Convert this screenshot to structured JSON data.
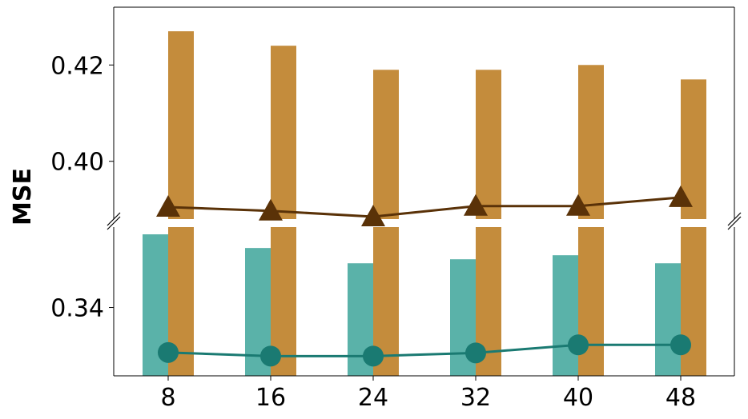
{
  "chart_data": {
    "type": "bar",
    "ylabel": "MSE",
    "categories": [
      "8",
      "16",
      "24",
      "32",
      "40",
      "48"
    ],
    "y_axis_broken": true,
    "upper_panel": {
      "ylim": [
        0.388,
        0.432
      ],
      "yticks": [
        "0.40",
        "0.42"
      ]
    },
    "lower_panel": {
      "ylim": [
        0.323,
        0.36
      ],
      "yticks": [
        "0.34"
      ]
    },
    "series": [
      {
        "kind": "bar",
        "color": "#5ab2a9",
        "values": [
          0.3582,
          0.3548,
          0.351,
          0.352,
          0.353,
          0.351
        ]
      },
      {
        "kind": "bar",
        "color": "#c48c3c",
        "values": [
          0.427,
          0.424,
          0.419,
          0.419,
          0.42,
          0.417
        ]
      },
      {
        "kind": "line",
        "marker": "triangle",
        "color": "#5a3208",
        "values": [
          0.3905,
          0.3897,
          0.3885,
          0.3907,
          0.3907,
          0.3925
        ]
      },
      {
        "kind": "line",
        "marker": "circle",
        "color": "#1a7a72",
        "values": [
          0.3288,
          0.3279,
          0.3279,
          0.3287,
          0.3307,
          0.3307
        ]
      }
    ],
    "grid": false,
    "legend": "none"
  }
}
